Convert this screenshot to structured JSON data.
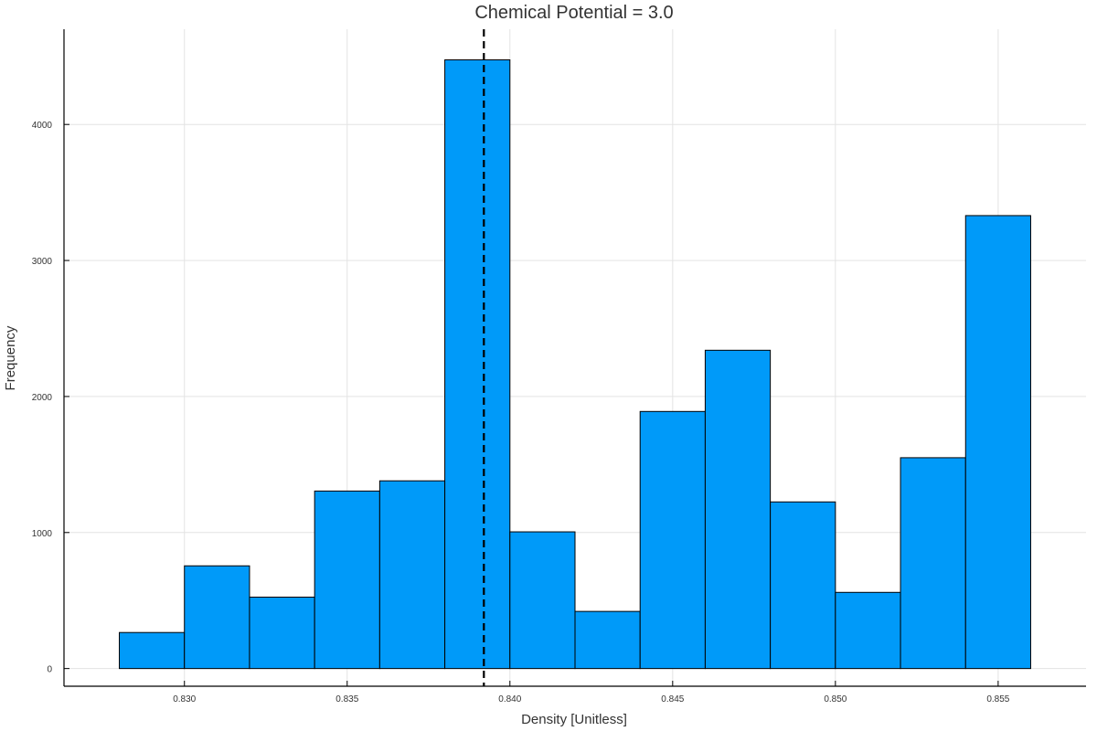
{
  "chart_data": {
    "type": "bar",
    "title": "Chemical Potential = 3.0",
    "xlabel": "Density [Unitless]",
    "ylabel": "Frequency",
    "bar_color": "#009af9",
    "bar_edge_color": "#000000",
    "bin_edges": [
      0.828,
      0.83,
      0.832,
      0.834,
      0.836,
      0.838,
      0.84,
      0.842,
      0.844,
      0.846,
      0.848,
      0.85,
      0.852,
      0.854,
      0.856
    ],
    "values": [
      265,
      755,
      525,
      1305,
      1380,
      4475,
      1005,
      420,
      1890,
      2340,
      1225,
      560,
      1550,
      3330
    ],
    "reference_line": {
      "x": 0.8392,
      "style": "dashed",
      "color": "#000000"
    },
    "xlim": [
      0.8263,
      0.8577
    ],
    "ylim": [
      -130,
      4700
    ],
    "x_ticks": [
      0.83,
      0.835,
      0.84,
      0.845,
      0.85,
      0.855
    ],
    "x_tick_labels": [
      "0.830",
      "0.835",
      "0.840",
      "0.845",
      "0.850",
      "0.855"
    ],
    "y_ticks": [
      0,
      1000,
      2000,
      3000,
      4000
    ],
    "y_tick_labels": [
      "0",
      "1000",
      "2000",
      "3000",
      "4000"
    ],
    "grid": true,
    "legend": "none"
  }
}
